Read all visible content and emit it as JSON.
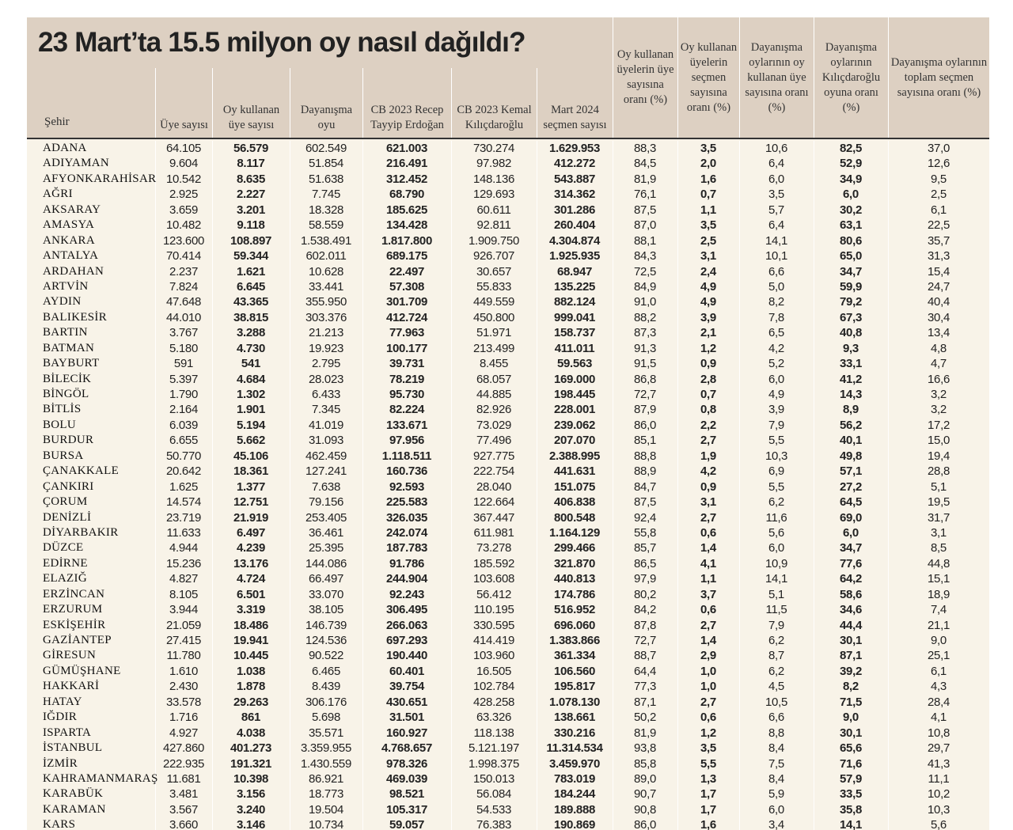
{
  "title": "23 Mart’ta 15.5 milyon oy nasıl dağıldı?",
  "headers": {
    "sehir": "Şehir",
    "uye": "Üye sayısı",
    "oy_kullanan": "Oy kullanan üye sayısı",
    "dayanisma": "Dayanışma oyu",
    "erdogan": "CB 2023 Recep Tayyip Erdoğan",
    "kilicdaroglu": "CB 2023 Kemal Kılıçdaroğlu",
    "mart2024": "Mart 2024 seçmen sayısı",
    "oran1": "Oy kullanan üyelerin üye sayısına oranı (%)",
    "oran2": "Oy kullanan üyelerin seçmen sayısına oranı (%)",
    "oran3": "Dayanışma oylarının oy kullanan üye sayısına oranı (%)",
    "oran4": "Dayanışma oylarının Kılıçdaroğlu oyuna oranı (%)",
    "oran5": "Dayanışma oylarının toplam seçmen sayısına oranı (%)"
  },
  "rows": [
    [
      "ADANA",
      "64.105",
      "56.579",
      "602.549",
      "621.003",
      "730.274",
      "1.629.953",
      "88,3",
      "3,5",
      "10,6",
      "82,5",
      "37,0"
    ],
    [
      "ADIYAMAN",
      "9.604",
      "8.117",
      "51.854",
      "216.491",
      "97.982",
      "412.272",
      "84,5",
      "2,0",
      "6,4",
      "52,9",
      "12,6"
    ],
    [
      "AFYONKARAHİSAR",
      "10.542",
      "8.635",
      "51.638",
      "312.452",
      "148.136",
      "543.887",
      "81,9",
      "1,6",
      "6,0",
      "34,9",
      "9,5"
    ],
    [
      "AĞRI",
      "2.925",
      "2.227",
      "7.745",
      "68.790",
      "129.693",
      "314.362",
      "76,1",
      "0,7",
      "3,5",
      "6,0",
      "2,5"
    ],
    [
      "AKSARAY",
      "3.659",
      "3.201",
      "18.328",
      "185.625",
      "60.611",
      "301.286",
      "87,5",
      "1,1",
      "5,7",
      "30,2",
      "6,1"
    ],
    [
      "AMASYA",
      "10.482",
      "9.118",
      "58.559",
      "134.428",
      "92.811",
      "260.404",
      "87,0",
      "3,5",
      "6,4",
      "63,1",
      "22,5"
    ],
    [
      "ANKARA",
      "123.600",
      "108.897",
      "1.538.491",
      "1.817.800",
      "1.909.750",
      "4.304.874",
      "88,1",
      "2,5",
      "14,1",
      "80,6",
      "35,7"
    ],
    [
      "ANTALYA",
      "70.414",
      "59.344",
      "602.011",
      "689.175",
      "926.707",
      "1.925.935",
      "84,3",
      "3,1",
      "10,1",
      "65,0",
      "31,3"
    ],
    [
      "ARDAHAN",
      "2.237",
      "1.621",
      "10.628",
      "22.497",
      "30.657",
      "68.947",
      "72,5",
      "2,4",
      "6,6",
      "34,7",
      "15,4"
    ],
    [
      "ARTVİN",
      "7.824",
      "6.645",
      "33.441",
      "57.308",
      "55.833",
      "135.225",
      "84,9",
      "4,9",
      "5,0",
      "59,9",
      "24,7"
    ],
    [
      "AYDIN",
      "47.648",
      "43.365",
      "355.950",
      "301.709",
      "449.559",
      "882.124",
      "91,0",
      "4,9",
      "8,2",
      "79,2",
      "40,4"
    ],
    [
      "BALIKESİR",
      "44.010",
      "38.815",
      "303.376",
      "412.724",
      "450.800",
      "999.041",
      "88,2",
      "3,9",
      "7,8",
      "67,3",
      "30,4"
    ],
    [
      "BARTIN",
      "3.767",
      "3.288",
      "21.213",
      "77.963",
      "51.971",
      "158.737",
      "87,3",
      "2,1",
      "6,5",
      "40,8",
      "13,4"
    ],
    [
      "BATMAN",
      "5.180",
      "4.730",
      "19.923",
      "100.177",
      "213.499",
      "411.011",
      "91,3",
      "1,2",
      "4,2",
      "9,3",
      "4,8"
    ],
    [
      "BAYBURT",
      "591",
      "541",
      "2.795",
      "39.731",
      "8.455",
      "59.563",
      "91,5",
      "0,9",
      "5,2",
      "33,1",
      "4,7"
    ],
    [
      "BİLECİK",
      "5.397",
      "4.684",
      "28.023",
      "78.219",
      "68.057",
      "169.000",
      "86,8",
      "2,8",
      "6,0",
      "41,2",
      "16,6"
    ],
    [
      "BİNGÖL",
      "1.790",
      "1.302",
      "6.433",
      "95.730",
      "44.885",
      "198.445",
      "72,7",
      "0,7",
      "4,9",
      "14,3",
      "3,2"
    ],
    [
      "BİTLİS",
      "2.164",
      "1.901",
      "7.345",
      "82.224",
      "82.926",
      "228.001",
      "87,9",
      "0,8",
      "3,9",
      "8,9",
      "3,2"
    ],
    [
      "BOLU",
      "6.039",
      "5.194",
      "41.019",
      "133.671",
      "73.029",
      "239.062",
      "86,0",
      "2,2",
      "7,9",
      "56,2",
      "17,2"
    ],
    [
      "BURDUR",
      "6.655",
      "5.662",
      "31.093",
      "97.956",
      "77.496",
      "207.070",
      "85,1",
      "2,7",
      "5,5",
      "40,1",
      "15,0"
    ],
    [
      "BURSA",
      "50.770",
      "45.106",
      "462.459",
      "1.118.511",
      "927.775",
      "2.388.995",
      "88,8",
      "1,9",
      "10,3",
      "49,8",
      "19,4"
    ],
    [
      "ÇANAKKALE",
      "20.642",
      "18.361",
      "127.241",
      "160.736",
      "222.754",
      "441.631",
      "88,9",
      "4,2",
      "6,9",
      "57,1",
      "28,8"
    ],
    [
      "ÇANKIRI",
      "1.625",
      "1.377",
      "7.638",
      "92.593",
      "28.040",
      "151.075",
      "84,7",
      "0,9",
      "5,5",
      "27,2",
      "5,1"
    ],
    [
      "ÇORUM",
      "14.574",
      "12.751",
      "79.156",
      "225.583",
      "122.664",
      "406.838",
      "87,5",
      "3,1",
      "6,2",
      "64,5",
      "19,5"
    ],
    [
      "DENİZLİ",
      "23.719",
      "21.919",
      "253.405",
      "326.035",
      "367.447",
      "800.548",
      "92,4",
      "2,7",
      "11,6",
      "69,0",
      "31,7"
    ],
    [
      "DİYARBAKIR",
      "11.633",
      "6.497",
      "36.461",
      "242.074",
      "611.981",
      "1.164.129",
      "55,8",
      "0,6",
      "5,6",
      "6,0",
      "3,1"
    ],
    [
      "DÜZCE",
      "4.944",
      "4.239",
      "25.395",
      "187.783",
      "73.278",
      "299.466",
      "85,7",
      "1,4",
      "6,0",
      "34,7",
      "8,5"
    ],
    [
      "EDİRNE",
      "15.236",
      "13.176",
      "144.086",
      "91.786",
      "185.592",
      "321.870",
      "86,5",
      "4,1",
      "10,9",
      "77,6",
      "44,8"
    ],
    [
      "ELAZIĞ",
      "4.827",
      "4.724",
      "66.497",
      "244.904",
      "103.608",
      "440.813",
      "97,9",
      "1,1",
      "14,1",
      "64,2",
      "15,1"
    ],
    [
      "ERZİNCAN",
      "8.105",
      "6.501",
      "33.070",
      "92.243",
      "56.412",
      "174.786",
      "80,2",
      "3,7",
      "5,1",
      "58,6",
      "18,9"
    ],
    [
      "ERZURUM",
      "3.944",
      "3.319",
      "38.105",
      "306.495",
      "110.195",
      "516.952",
      "84,2",
      "0,6",
      "11,5",
      "34,6",
      "7,4"
    ],
    [
      "ESKİŞEHİR",
      "21.059",
      "18.486",
      "146.739",
      "266.063",
      "330.595",
      "696.060",
      "87,8",
      "2,7",
      "7,9",
      "44,4",
      "21,1"
    ],
    [
      "GAZİANTEP",
      "27.415",
      "19.941",
      "124.536",
      "697.293",
      "414.419",
      "1.383.866",
      "72,7",
      "1,4",
      "6,2",
      "30,1",
      "9,0"
    ],
    [
      "GİRESUN",
      "11.780",
      "10.445",
      "90.522",
      "190.440",
      "103.960",
      "361.334",
      "88,7",
      "2,9",
      "8,7",
      "87,1",
      "25,1"
    ],
    [
      "GÜMÜŞHANE",
      "1.610",
      "1.038",
      "6.465",
      "60.401",
      "16.505",
      "106.560",
      "64,4",
      "1,0",
      "6,2",
      "39,2",
      "6,1"
    ],
    [
      "HAKKARİ",
      "2.430",
      "1.878",
      "8.439",
      "39.754",
      "102.784",
      "195.817",
      "77,3",
      "1,0",
      "4,5",
      "8,2",
      "4,3"
    ],
    [
      "HATAY",
      "33.578",
      "29.263",
      "306.176",
      "430.651",
      "428.258",
      "1.078.130",
      "87,1",
      "2,7",
      "10,5",
      "71,5",
      "28,4"
    ],
    [
      "IĞDIR",
      "1.716",
      "861",
      "5.698",
      "31.501",
      "63.326",
      "138.661",
      "50,2",
      "0,6",
      "6,6",
      "9,0",
      "4,1"
    ],
    [
      "ISPARTA",
      "4.927",
      "4.038",
      "35.571",
      "160.927",
      "118.138",
      "330.216",
      "81,9",
      "1,2",
      "8,8",
      "30,1",
      "10,8"
    ],
    [
      "İSTANBUL",
      "427.860",
      "401.273",
      "3.359.955",
      "4.768.657",
      "5.121.197",
      "11.314.534",
      "93,8",
      "3,5",
      "8,4",
      "65,6",
      "29,7"
    ],
    [
      "İZMİR",
      "222.935",
      "191.321",
      "1.430.559",
      "978.326",
      "1.998.375",
      "3.459.970",
      "85,8",
      "5,5",
      "7,5",
      "71,6",
      "41,3"
    ],
    [
      "KAHRAMANMARAŞ",
      "11.681",
      "10.398",
      "86.921",
      "469.039",
      "150.013",
      "783.019",
      "89,0",
      "1,3",
      "8,4",
      "57,9",
      "11,1"
    ],
    [
      "KARABÜK",
      "3.481",
      "3.156",
      "18.773",
      "98.521",
      "56.084",
      "184.244",
      "90,7",
      "1,7",
      "5,9",
      "33,5",
      "10,2"
    ],
    [
      "KARAMAN",
      "3.567",
      "3.240",
      "19.504",
      "105.317",
      "54.533",
      "189.888",
      "90,8",
      "1,7",
      "6,0",
      "35,8",
      "10,3"
    ],
    [
      "KARS",
      "3.660",
      "3.146",
      "10.734",
      "59.057",
      "76.383",
      "190.869",
      "86,0",
      "1,6",
      "3,4",
      "14,1",
      "5,6"
    ]
  ]
}
